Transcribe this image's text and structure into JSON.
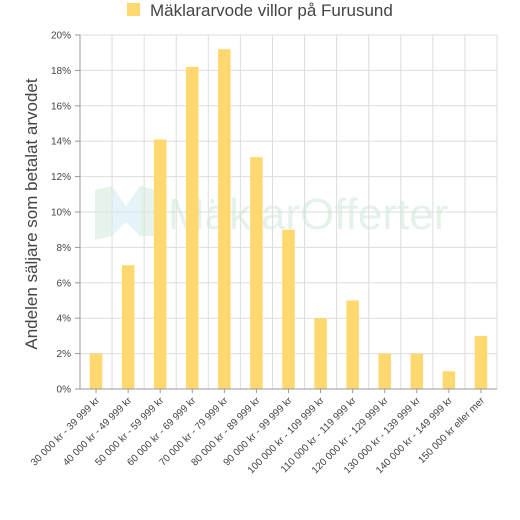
{
  "chart_data": {
    "type": "bar",
    "title": "Mäklararvode villor på Furusund",
    "ylabel": "Andelen säljare som betalat arvodet",
    "xlabel": "",
    "ylim": [
      0,
      20
    ],
    "yticks": [
      "0%",
      "2%",
      "4%",
      "6%",
      "8%",
      "10%",
      "12%",
      "14%",
      "16%",
      "18%",
      "20%"
    ],
    "categories": [
      "30 000 kr - 39 999 kr",
      "40 000 kr - 49 999 kr",
      "50 000 kr - 59 999 kr",
      "60 000 kr - 69 999 kr",
      "70 000 kr - 79 999 kr",
      "80 000 kr - 89 999 kr",
      "90 000 kr - 99 999 kr",
      "100 000 kr - 109 999 kr",
      "110 000 kr - 119 999 kr",
      "120 000 kr - 129 999 kr",
      "130 000 kr - 139 999 kr",
      "140 000 kr - 149 999 kr",
      "150 000 kr eller mer"
    ],
    "series": [
      {
        "name": "Mäklararvode villor på Furusund",
        "values": [
          2,
          7,
          14.1,
          18.2,
          19.2,
          13.1,
          9,
          4,
          5,
          2,
          2,
          1,
          3
        ],
        "color": "#ffd86f"
      }
    ],
    "grid": true,
    "legend": "top-center",
    "watermark": "MäklarOfferter"
  }
}
